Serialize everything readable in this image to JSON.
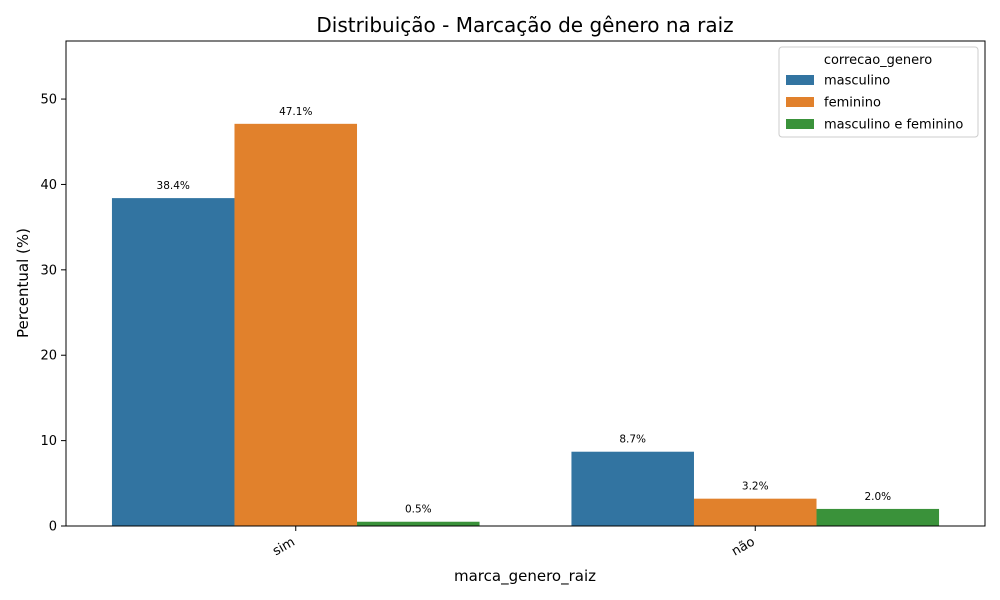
{
  "chart_data": {
    "type": "bar",
    "title": "Distribuição - Marcação de gênero na raiz",
    "xlabel": "marca_genero_raiz",
    "ylabel": "Percentual (%)",
    "categories": [
      "sim",
      "não"
    ],
    "series": [
      {
        "name": "masculino",
        "values": [
          38.4,
          8.7
        ],
        "labels": [
          "38.4%",
          "8.7%"
        ],
        "color": "#3274a1"
      },
      {
        "name": "feminino",
        "values": [
          47.1,
          3.2
        ],
        "labels": [
          "47.1%",
          "3.2%"
        ],
        "color": "#e1812c"
      },
      {
        "name": "masculino e feminino",
        "values": [
          0.5,
          2.0
        ],
        "labels": [
          "0.5%",
          "2.0%"
        ],
        "color": "#3a923a"
      }
    ],
    "ylim": [
      0,
      56.8
    ],
    "yticks": [
      0,
      10,
      20,
      30,
      40,
      50
    ],
    "legend": {
      "title": "correcao_genero",
      "position": "top-right"
    },
    "grid": false
  }
}
